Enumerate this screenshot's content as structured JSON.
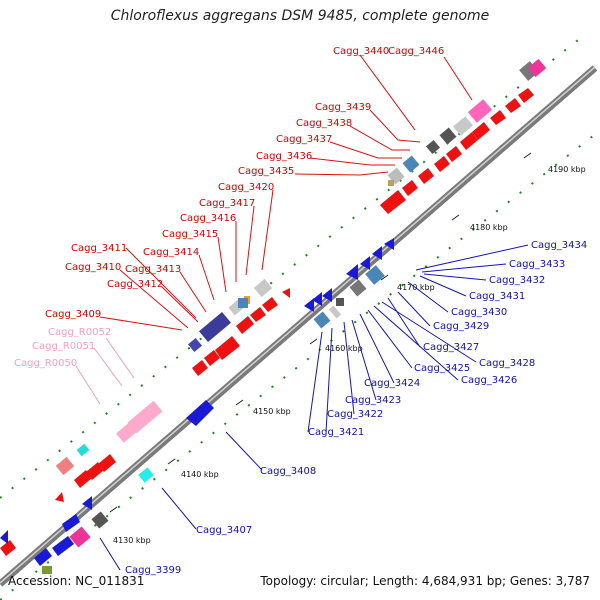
{
  "title": "Chloroflexus aggregans DSM 9485, complete genome",
  "footer": {
    "accession": "Accession: NC_011831",
    "summary": "Topology: circular; Length: 4,684,931 bp; Genes: 3,787"
  },
  "colors": {
    "forward_cds": "#ee1111",
    "reverse_cds": "#1a1ad6",
    "forward_label": "#d40000",
    "reverse_label": "#1111aa",
    "rna_label": "#f0a0c0",
    "backbone": "#8c8c8c"
  },
  "ticks": [
    {
      "label": "4130 kbp"
    },
    {
      "label": "4140 kbp"
    },
    {
      "label": "4150 kbp"
    },
    {
      "label": "4160 kbp"
    },
    {
      "label": "4170 kbp"
    },
    {
      "label": "4180 kbp"
    },
    {
      "label": "4190 kbp"
    }
  ],
  "labels_forward": [
    {
      "text": "Cagg_3440"
    },
    {
      "text": "Cagg_3446"
    },
    {
      "text": "Cagg_3439"
    },
    {
      "text": "Cagg_3438"
    },
    {
      "text": "Cagg_3437"
    },
    {
      "text": "Cagg_3436"
    },
    {
      "text": "Cagg_3435"
    },
    {
      "text": "Cagg_3420"
    },
    {
      "text": "Cagg_3417"
    },
    {
      "text": "Cagg_3416"
    },
    {
      "text": "Cagg_3415"
    },
    {
      "text": "Cagg_3414"
    },
    {
      "text": "Cagg_3411"
    },
    {
      "text": "Cagg_3413"
    },
    {
      "text": "Cagg_3410"
    },
    {
      "text": "Cagg_3412"
    },
    {
      "text": "Cagg_3409"
    }
  ],
  "labels_rna": [
    {
      "text": "Cagg_R0052"
    },
    {
      "text": "Cagg_R0051"
    },
    {
      "text": "Cagg_R0050"
    }
  ],
  "labels_reverse": [
    {
      "text": "Cagg_3434"
    },
    {
      "text": "Cagg_3433"
    },
    {
      "text": "Cagg_3432"
    },
    {
      "text": "Cagg_3431"
    },
    {
      "text": "Cagg_3430"
    },
    {
      "text": "Cagg_3429"
    },
    {
      "text": "Cagg_3427"
    },
    {
      "text": "Cagg_3428"
    },
    {
      "text": "Cagg_3426"
    },
    {
      "text": "Cagg_3425"
    },
    {
      "text": "Cagg_3424"
    },
    {
      "text": "Cagg_3423"
    },
    {
      "text": "Cagg_3422"
    },
    {
      "text": "Cagg_3421"
    },
    {
      "text": "Cagg_3408"
    },
    {
      "text": "Cagg_3407"
    },
    {
      "text": "Cagg_3399"
    }
  ]
}
